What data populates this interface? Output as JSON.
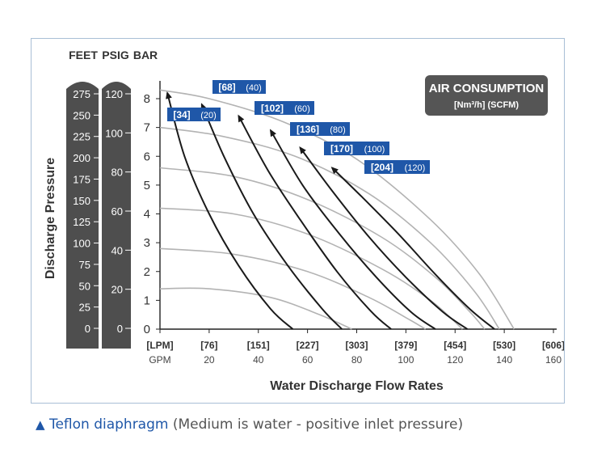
{
  "chart_data": {
    "type": "line",
    "title": "",
    "xlabel": "Water Discharge Flow Rates",
    "ylabel": "Discharge Pressure",
    "x_unit_primary": "GPM",
    "x_unit_secondary": "LPM",
    "x_ticks": [
      0,
      20,
      40,
      60,
      80,
      100,
      120,
      140,
      160
    ],
    "x_tick_labels_gpm": [
      "GPM",
      "20",
      "40",
      "60",
      "80",
      "100",
      "120",
      "140",
      "160"
    ],
    "x_tick_labels_lpm": [
      "[LPM]",
      "[76]",
      "[151]",
      "[227]",
      "[303]",
      "[379]",
      "[454]",
      "[530]",
      "[606]"
    ],
    "xlim": [
      0,
      160
    ],
    "ylim": [
      0,
      8.5
    ],
    "y_ticks_bar": [
      0,
      1,
      2,
      3,
      4,
      5,
      6,
      7,
      8
    ],
    "y_tick_labels_bar": [
      "0",
      "1",
      "2",
      "3",
      "4",
      "5",
      "6",
      "7",
      "8"
    ],
    "scale_headers": [
      "FEET",
      "PSIG",
      "BAR"
    ],
    "feet_ticks": [
      "275",
      "250",
      "225",
      "200",
      "175",
      "150",
      "125",
      "100",
      "75",
      "50",
      "25",
      "0"
    ],
    "psig_ticks": [
      "120",
      "100",
      "80",
      "60",
      "40",
      "20",
      "0"
    ],
    "legend": {
      "title": "AIR CONSUMPTION",
      "subtitle": "[Nm³/h] (SCFM)",
      "placement": "top-right"
    },
    "air_curves": [
      {
        "label_nm3": "[34]",
        "label_scfm": "(20)",
        "points": [
          [
            3,
            8.2
          ],
          [
            10,
            6.0
          ],
          [
            20,
            4.0
          ],
          [
            32,
            2.2
          ],
          [
            45,
            0.7
          ],
          [
            54,
            0
          ]
        ]
      },
      {
        "label_nm3": "[68]",
        "label_scfm": "(40)",
        "points": [
          [
            17,
            7.8
          ],
          [
            26,
            6.0
          ],
          [
            38,
            4.0
          ],
          [
            52,
            2.2
          ],
          [
            66,
            0.7
          ],
          [
            74,
            0
          ]
        ]
      },
      {
        "label_nm3": "[102]",
        "label_scfm": "(60)",
        "points": [
          [
            32,
            7.4
          ],
          [
            44,
            5.5
          ],
          [
            57,
            3.8
          ],
          [
            72,
            2.0
          ],
          [
            86,
            0.6
          ],
          [
            94,
            0
          ]
        ]
      },
      {
        "label_nm3": "[136]",
        "label_scfm": "(80)",
        "points": [
          [
            45,
            6.9
          ],
          [
            58,
            5.0
          ],
          [
            73,
            3.3
          ],
          [
            88,
            1.8
          ],
          [
            102,
            0.6
          ],
          [
            112,
            0
          ]
        ]
      },
      {
        "label_nm3": "[170]",
        "label_scfm": "(100)",
        "points": [
          [
            57,
            6.3
          ],
          [
            70,
            4.8
          ],
          [
            85,
            3.2
          ],
          [
            100,
            1.8
          ],
          [
            115,
            0.6
          ],
          [
            125,
            0
          ]
        ]
      },
      {
        "label_nm3": "[204]",
        "label_scfm": "(120)",
        "points": [
          [
            70,
            5.6
          ],
          [
            82,
            4.6
          ],
          [
            97,
            3.3
          ],
          [
            112,
            1.9
          ],
          [
            126,
            0.7
          ],
          [
            136,
            0
          ]
        ]
      }
    ],
    "performance_curves": [
      {
        "points": [
          [
            0,
            8.3
          ],
          [
            20,
            8.0
          ],
          [
            50,
            7.2
          ],
          [
            80,
            5.9
          ],
          [
            110,
            3.8
          ],
          [
            130,
            1.9
          ],
          [
            144,
            0
          ]
        ]
      },
      {
        "points": [
          [
            0,
            7.0
          ],
          [
            25,
            6.7
          ],
          [
            55,
            6.0
          ],
          [
            85,
            4.7
          ],
          [
            110,
            3.0
          ],
          [
            128,
            1.3
          ],
          [
            138,
            0
          ]
        ]
      },
      {
        "points": [
          [
            0,
            5.6
          ],
          [
            30,
            5.3
          ],
          [
            60,
            4.5
          ],
          [
            90,
            3.2
          ],
          [
            112,
            1.8
          ],
          [
            126,
            0.6
          ],
          [
            132,
            0
          ]
        ]
      },
      {
        "points": [
          [
            0,
            4.2
          ],
          [
            30,
            4.0
          ],
          [
            60,
            3.3
          ],
          [
            90,
            2.1
          ],
          [
            110,
            1.0
          ],
          [
            123,
            0
          ]
        ]
      },
      {
        "points": [
          [
            0,
            2.8
          ],
          [
            30,
            2.6
          ],
          [
            60,
            2.0
          ],
          [
            85,
            1.1
          ],
          [
            100,
            0.4
          ],
          [
            108,
            0
          ]
        ]
      },
      {
        "points": [
          [
            0,
            1.4
          ],
          [
            20,
            1.4
          ],
          [
            45,
            1.1
          ],
          [
            65,
            0.5
          ],
          [
            78,
            0
          ]
        ]
      }
    ],
    "grid": false,
    "colors": {
      "air_curve": "#1a1a1a",
      "performance_curve": "#b3b3b3",
      "label_box": "#1f57a8",
      "legend_box": "#555555",
      "scale_bar": "#4e4e4e",
      "frame": "#a9bfd6"
    }
  },
  "caption": {
    "triangle": "▲",
    "lead": "Teflon diaphragm",
    "rest": " (Medium is water -  positive inlet pressure)"
  }
}
